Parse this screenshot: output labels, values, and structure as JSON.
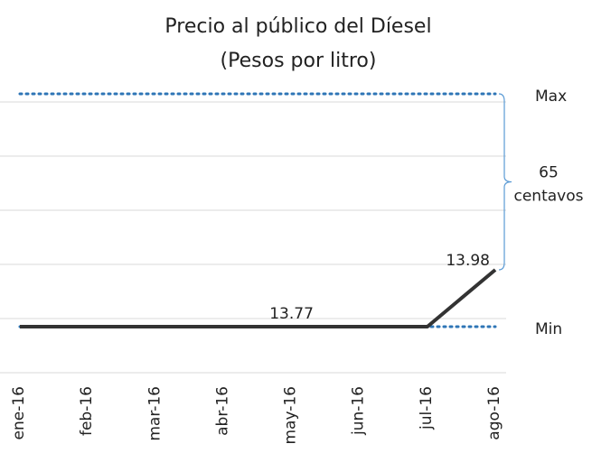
{
  "chart_data": {
    "type": "line",
    "title": "Precio al público del Díesel",
    "subtitle": "(Pesos por litro)",
    "categories": [
      "ene-16",
      "feb-16",
      "mar-16",
      "abr-16",
      "may-16",
      "jun-16",
      "jul-16",
      "ago-16"
    ],
    "series": [
      {
        "name": "Diésel",
        "color": "#333333",
        "values": [
          13.77,
          13.77,
          13.77,
          13.77,
          13.77,
          13.77,
          13.77,
          13.98
        ]
      }
    ],
    "data_labels": [
      4,
      7
    ],
    "reference_lines": [
      {
        "label": "Max",
        "value": 14.63,
        "color": "#2e75b6"
      },
      {
        "label": "Min",
        "value": 13.77,
        "color": "#2e75b6"
      }
    ],
    "annotation": [
      "65",
      "centavos"
    ],
    "ylim": [
      13.6,
      14.65
    ],
    "yticks": [
      13.6,
      13.8,
      14.0,
      14.2,
      14.4,
      14.6
    ],
    "grid": true
  }
}
